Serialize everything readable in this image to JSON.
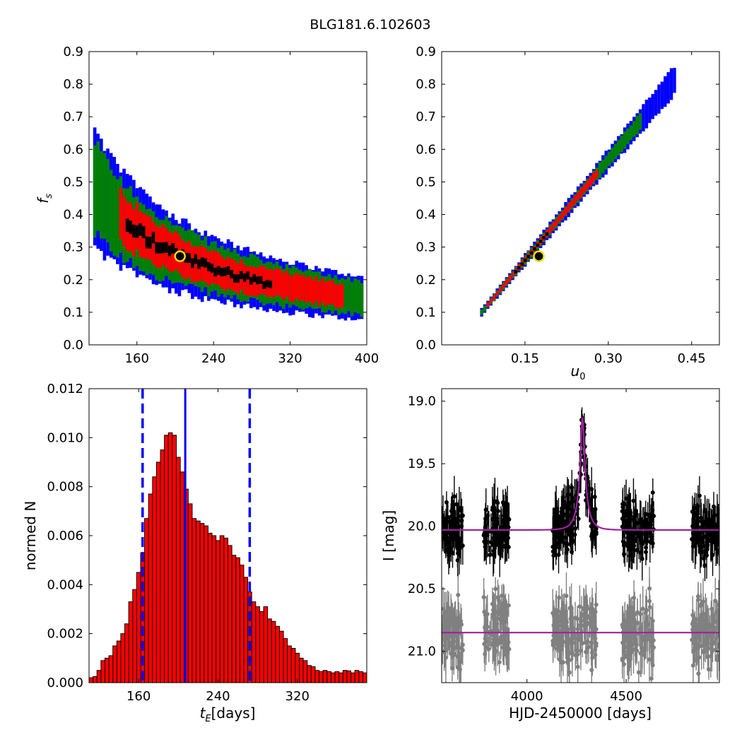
{
  "title": "BLG181.6.102603",
  "colors": {
    "level3": "#0000ff",
    "level2": "#008000",
    "level1": "#ff0000",
    "level0": "#000000",
    "best": "#f0e000",
    "model": "#a020a0",
    "grey": "#808080",
    "vline": "#0000ff"
  },
  "chart_data": [
    {
      "id": "tE_fs",
      "type": "heatmap",
      "xlabel": "",
      "ylabel": "f_s",
      "xlim": [
        110,
        400
      ],
      "ylim": [
        0.0,
        0.9
      ],
      "xticks": [
        "160",
        "240",
        "320",
        "400"
      ],
      "yticks": [
        "0.0",
        "0.1",
        "0.2",
        "0.3",
        "0.4",
        "0.5",
        "0.6",
        "0.7",
        "0.8",
        "0.9"
      ],
      "best_fit": {
        "x": 205,
        "y": 0.272
      }
    },
    {
      "id": "u0_fs",
      "type": "heatmap",
      "xlabel": "u_0",
      "ylabel": "",
      "xlim": [
        0.0,
        0.5
      ],
      "ylim": [
        0.0,
        0.9
      ],
      "xticks": [
        "0.15",
        "0.30",
        "0.45"
      ],
      "yticks": [
        "0.0",
        "0.1",
        "0.2",
        "0.3",
        "0.4",
        "0.5",
        "0.6",
        "0.7",
        "0.8",
        "0.9"
      ],
      "best_fit": {
        "x": 0.175,
        "y": 0.272
      }
    },
    {
      "id": "tE_hist",
      "type": "bar",
      "xlabel": "t_E [days]",
      "xlabel_unit": "[days]",
      "ylabel": "normed N",
      "xlim": [
        110,
        390
      ],
      "ylim": [
        0.0,
        0.012
      ],
      "bin_start": 110,
      "bin_width": 4,
      "xticks": [
        "160",
        "240",
        "320"
      ],
      "yticks": [
        "0.000",
        "0.002",
        "0.004",
        "0.006",
        "0.008",
        "0.010",
        "0.012"
      ],
      "values": [
        0.0002,
        0.00025,
        0.0005,
        0.0009,
        0.001,
        0.0011,
        0.0015,
        0.0017,
        0.002,
        0.0024,
        0.0033,
        0.0038,
        0.0045,
        0.0053,
        0.0067,
        0.0077,
        0.0084,
        0.009,
        0.0095,
        0.0101,
        0.0102,
        0.0101,
        0.0092,
        0.0086,
        0.0079,
        0.0073,
        0.0067,
        0.0066,
        0.0065,
        0.0064,
        0.0061,
        0.006,
        0.0058,
        0.006,
        0.0059,
        0.0056,
        0.0052,
        0.0051,
        0.0048,
        0.0043,
        0.0037,
        0.0033,
        0.0031,
        0.0029,
        0.0031,
        0.0026,
        0.0025,
        0.0023,
        0.0021,
        0.0018,
        0.0015,
        0.0014,
        0.0012,
        0.001,
        0.0009,
        0.0007,
        0.00065,
        0.0005,
        0.00045,
        0.0005,
        0.00045,
        0.0004,
        0.00045,
        0.0004,
        0.0005,
        0.00048,
        0.0004,
        0.0005,
        0.00045,
        0.0004
      ],
      "median": 207,
      "interval": [
        164,
        272
      ]
    },
    {
      "id": "lightcurve",
      "type": "scatter",
      "xlabel": "HJD-2450000 [days]",
      "ylabel": "I [mag]",
      "xlim": [
        3570,
        4970
      ],
      "ylim": [
        21.25,
        18.9
      ],
      "xticks": [
        "4000",
        "4500"
      ],
      "yticks": [
        "19.0",
        "19.5",
        "20.0",
        "20.5",
        "21.0"
      ],
      "model": {
        "t0": 4280,
        "tE": 207,
        "u0": 0.175,
        "fs": 0.272,
        "base_mag": 20.03,
        "baseline_offset_mag": 0.82
      },
      "seasons": [
        [
          3570,
          3680
        ],
        [
          3780,
          3910
        ],
        [
          4130,
          4350
        ],
        [
          4480,
          4640
        ],
        [
          4830,
          4970
        ]
      ]
    }
  ]
}
